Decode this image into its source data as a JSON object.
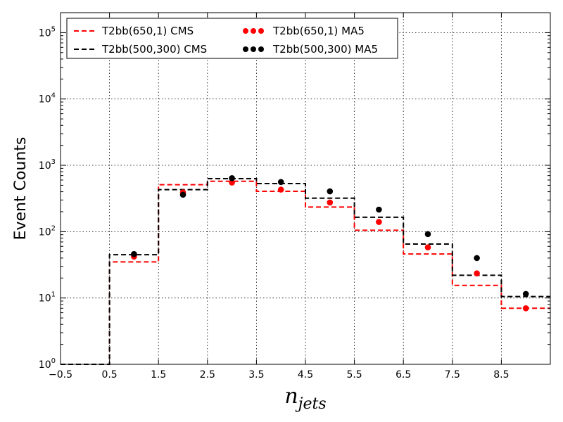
{
  "chart_data": {
    "type": "step+scatter",
    "xlabel_main": "n",
    "xlabel_sub": "jets",
    "ylabel": "Event Counts",
    "xlim": [
      -0.5,
      9.5
    ],
    "ylim": [
      1,
      200000
    ],
    "yscale": "log",
    "grid": true,
    "legend_position": "top-left",
    "x_ticks": [
      -0.5,
      0.5,
      1.5,
      2.5,
      3.5,
      4.5,
      5.5,
      6.5,
      7.5,
      8.5
    ],
    "x_tick_labels": [
      "−0.5",
      "0.5",
      "1.5",
      "2.5",
      "3.5",
      "4.5",
      "5.5",
      "6.5",
      "7.5",
      "8.5"
    ],
    "y_ticks": [
      1,
      10,
      100,
      1000,
      10000,
      100000
    ],
    "y_tick_base": "10",
    "y_tick_exponents": [
      "0",
      "1",
      "2",
      "3",
      "4",
      "5"
    ],
    "bin_edges": [
      -0.5,
      0.5,
      1.5,
      2.5,
      3.5,
      4.5,
      5.5,
      6.5,
      7.5,
      8.5,
      9.5
    ],
    "series": [
      {
        "name": "T2bb(650,1) CMS",
        "kind": "step",
        "color": "#ff0000",
        "values": [
          1,
          35,
          510,
          575,
          405,
          235,
          105,
          46,
          15.5,
          7
        ]
      },
      {
        "name": "T2bb(500,300) CMS",
        "kind": "step",
        "color": "#000000",
        "values": [
          1,
          45,
          430,
          630,
          530,
          320,
          165,
          65,
          22,
          10.5
        ]
      },
      {
        "name": "T2bb(650,1) MA5",
        "kind": "scatter",
        "color": "#ff0000",
        "x": [
          1,
          2,
          3,
          4,
          5,
          6,
          7,
          8,
          9
        ],
        "values": [
          42,
          390,
          550,
          430,
          275,
          140,
          58,
          23.5,
          7
        ]
      },
      {
        "name": "T2bb(500,300) MA5",
        "kind": "scatter",
        "color": "#000000",
        "x": [
          1,
          2,
          3,
          4,
          5,
          6,
          7,
          8,
          9
        ],
        "values": [
          46,
          360,
          640,
          560,
          405,
          215,
          92,
          40,
          11.5
        ]
      }
    ]
  }
}
